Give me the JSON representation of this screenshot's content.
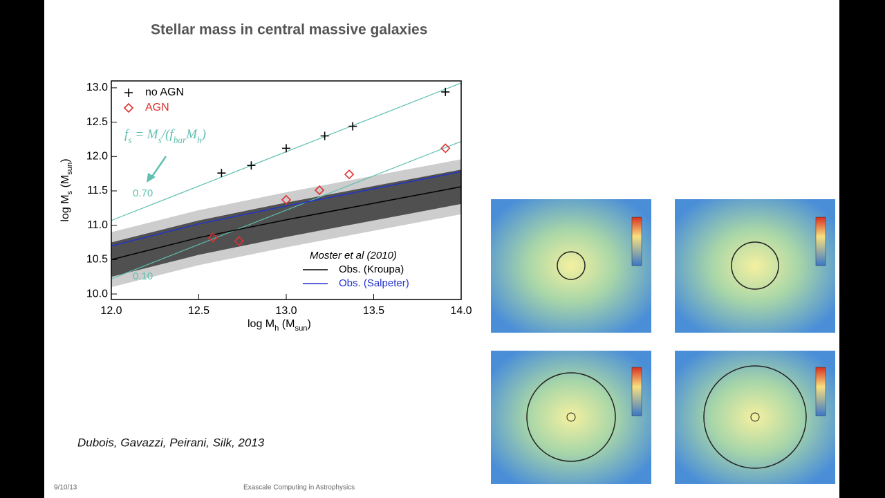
{
  "slide": {
    "title": "Stellar mass in central massive galaxies",
    "citation": "Dubois, Gavazzi, Peirani, Silk, 2013",
    "date": "9/10/13",
    "footer": "Exascale Computing in Astrophysics"
  },
  "chart_data": {
    "type": "scatter",
    "xlabel": [
      "log M",
      "h",
      " (M",
      "sun",
      ")"
    ],
    "ylabel": [
      "log M",
      "s",
      " (M",
      "sun",
      ")"
    ],
    "xlim": [
      12.0,
      14.0
    ],
    "ylim": [
      9.92,
      13.1
    ],
    "xticks": [
      {
        "value": 12,
        "label": "12.0"
      },
      {
        "value": 12.5,
        "label": "12.5"
      },
      {
        "value": 13,
        "label": "13.0"
      },
      {
        "value": 13.5,
        "label": "13.5"
      },
      {
        "value": 14,
        "label": "14.0"
      }
    ],
    "yticks": [
      {
        "value": 10,
        "label": "10.0"
      },
      {
        "value": 10.5,
        "label": "10.5"
      },
      {
        "value": 11,
        "label": "11.0"
      },
      {
        "value": 11.5,
        "label": "11.5"
      },
      {
        "value": 12,
        "label": "12.0"
      },
      {
        "value": 12.5,
        "label": "12.5"
      },
      {
        "value": 13,
        "label": "13.0"
      }
    ],
    "bands": [
      {
        "color": "#c4c4c4",
        "x": [
          12,
          12.5,
          13,
          13.5,
          14
        ],
        "lower": [
          10.1,
          10.42,
          10.68,
          10.92,
          11.16
        ],
        "upper": [
          10.9,
          11.22,
          11.48,
          11.72,
          11.96
        ]
      },
      {
        "color": "#3a3a3a",
        "x": [
          12,
          12.5,
          13,
          13.5,
          14
        ],
        "lower": [
          10.25,
          10.57,
          10.83,
          11.07,
          11.31
        ],
        "upper": [
          10.75,
          11.07,
          11.33,
          11.57,
          11.81
        ]
      }
    ],
    "fs_lines": [
      {
        "label": "0.70",
        "color": "#5fbfb0",
        "x": [
          12,
          14
        ],
        "values": [
          11.07,
          13.07
        ]
      },
      {
        "label": "0.10",
        "color": "#5fbfb0",
        "x": [
          12,
          14
        ],
        "values": [
          10.22,
          12.22
        ]
      }
    ],
    "formula": [
      "f",
      "s",
      " = M",
      "s",
      "/(f",
      "bar",
      "M",
      "h",
      ")"
    ],
    "reference": "Moster et al (2010)",
    "lines": [
      {
        "name": "Obs. (Kroupa)",
        "color": "#000000",
        "x": [
          12,
          12.5,
          13,
          13.5,
          14
        ],
        "values": [
          10.5,
          10.82,
          11.08,
          11.32,
          11.56
        ]
      },
      {
        "name": "Obs. (Salpeter)",
        "color": "#2233cc",
        "x": [
          12,
          12.5,
          13,
          13.5,
          14
        ],
        "values": [
          10.7,
          11.02,
          11.28,
          11.53,
          11.78
        ]
      }
    ],
    "series": [
      {
        "name": "no AGN",
        "color": "#000000",
        "marker": "plus",
        "x": [
          12.63,
          12.8,
          13.0,
          13.22,
          13.38,
          13.91
        ],
        "values": [
          11.76,
          11.87,
          12.12,
          12.3,
          12.44,
          12.94
        ]
      },
      {
        "name": "AGN",
        "color": "#e03030",
        "marker": "diamond",
        "x": [
          12.58,
          12.73,
          13.0,
          13.19,
          13.36,
          13.91
        ],
        "values": [
          10.82,
          10.77,
          11.37,
          11.51,
          11.74,
          12.12
        ]
      }
    ]
  }
}
